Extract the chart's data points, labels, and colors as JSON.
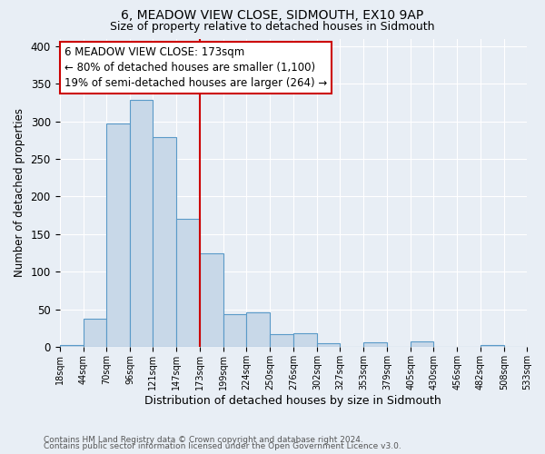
{
  "title": "6, MEADOW VIEW CLOSE, SIDMOUTH, EX10 9AP",
  "subtitle": "Size of property relative to detached houses in Sidmouth",
  "xlabel": "Distribution of detached houses by size in Sidmouth",
  "ylabel": "Number of detached properties",
  "bin_edges": [
    18,
    44,
    70,
    96,
    121,
    147,
    173,
    199,
    224,
    250,
    276,
    302,
    327,
    353,
    379,
    405,
    430,
    456,
    482,
    508,
    533
  ],
  "bar_heights": [
    2,
    37,
    297,
    329,
    279,
    170,
    124,
    43,
    46,
    17,
    18,
    5,
    0,
    6,
    0,
    7,
    0,
    0,
    2,
    0
  ],
  "bar_color": "#c8d8e8",
  "bar_edge_color": "#5a9ac8",
  "reference_line_x": 173,
  "ylim": [
    0,
    410
  ],
  "annotation_title": "6 MEADOW VIEW CLOSE: 173sqm",
  "annotation_line1": "← 80% of detached houses are smaller (1,100)",
  "annotation_line2": "19% of semi-detached houses are larger (264) →",
  "annotation_box_color": "#ffffff",
  "annotation_box_edge_color": "#cc0000",
  "ref_line_color": "#cc0000",
  "background_color": "#e8eef5",
  "footer1": "Contains HM Land Registry data © Crown copyright and database right 2024.",
  "footer2": "Contains public sector information licensed under the Open Government Licence v3.0.",
  "tick_labels": [
    "18sqm",
    "44sqm",
    "70sqm",
    "96sqm",
    "121sqm",
    "147sqm",
    "173sqm",
    "199sqm",
    "224sqm",
    "250sqm",
    "276sqm",
    "302sqm",
    "327sqm",
    "353sqm",
    "379sqm",
    "405sqm",
    "430sqm",
    "456sqm",
    "482sqm",
    "508sqm",
    "533sqm"
  ],
  "title_fontsize": 10,
  "subtitle_fontsize": 9,
  "ylabel_fontsize": 8.5,
  "xlabel_fontsize": 9,
  "annotation_fontsize": 8.5,
  "footer_fontsize": 6.5,
  "yticks": [
    0,
    50,
    100,
    150,
    200,
    250,
    300,
    350,
    400
  ]
}
